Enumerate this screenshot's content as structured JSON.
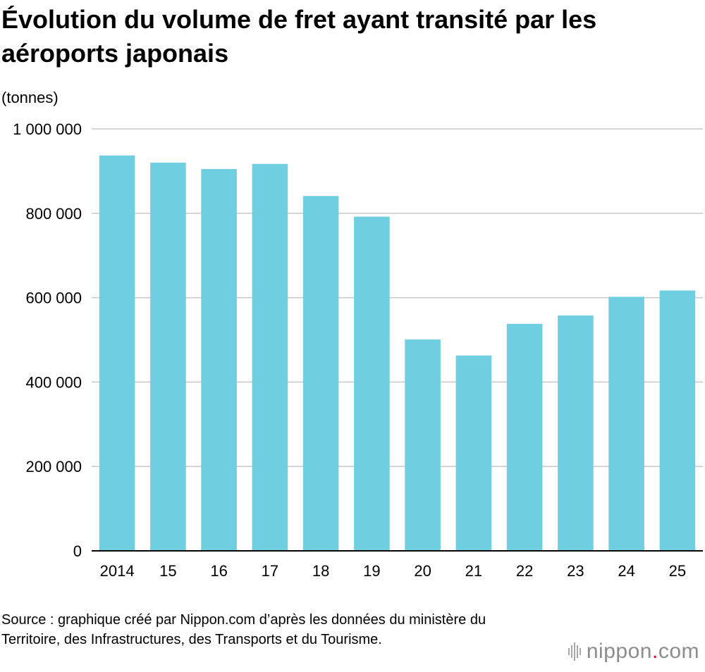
{
  "title": "Évolution du volume de fret ayant transité par les aéroports japonais",
  "unit_label": "(tonnes)",
  "source": "Source : graphique créé par Nippon.com d’après les données du ministère du Territoire, des Infrastructures, des Transports et du Tourisme.",
  "logo": {
    "name": "nippon",
    "dot": ".",
    "tld": "com"
  },
  "colors": {
    "bar": "#6fcfe1",
    "grid": "#c8c8c8",
    "axis": "#000000",
    "logo_text": "#8c8c8c",
    "logo_dot": "#e6002d"
  },
  "chart_data": {
    "type": "bar",
    "title": "Évolution du volume de fret ayant transité par les aéroports japonais",
    "ylabel": "(tonnes)",
    "xlabel": "",
    "categories": [
      "2014",
      "15",
      "16",
      "17",
      "18",
      "19",
      "20",
      "21",
      "22",
      "23",
      "24",
      "25"
    ],
    "values": [
      937000,
      920000,
      905000,
      917000,
      841000,
      792000,
      501000,
      463000,
      538000,
      558000,
      602000,
      617000
    ],
    "ylim": [
      0,
      1000000
    ],
    "yticks": [
      0,
      200000,
      400000,
      600000,
      800000,
      1000000
    ],
    "ytick_labels": [
      "0",
      "200 000",
      "400 000",
      "600 000",
      "800 000",
      "1 000 000"
    ],
    "grid": true,
    "legend": "none"
  }
}
